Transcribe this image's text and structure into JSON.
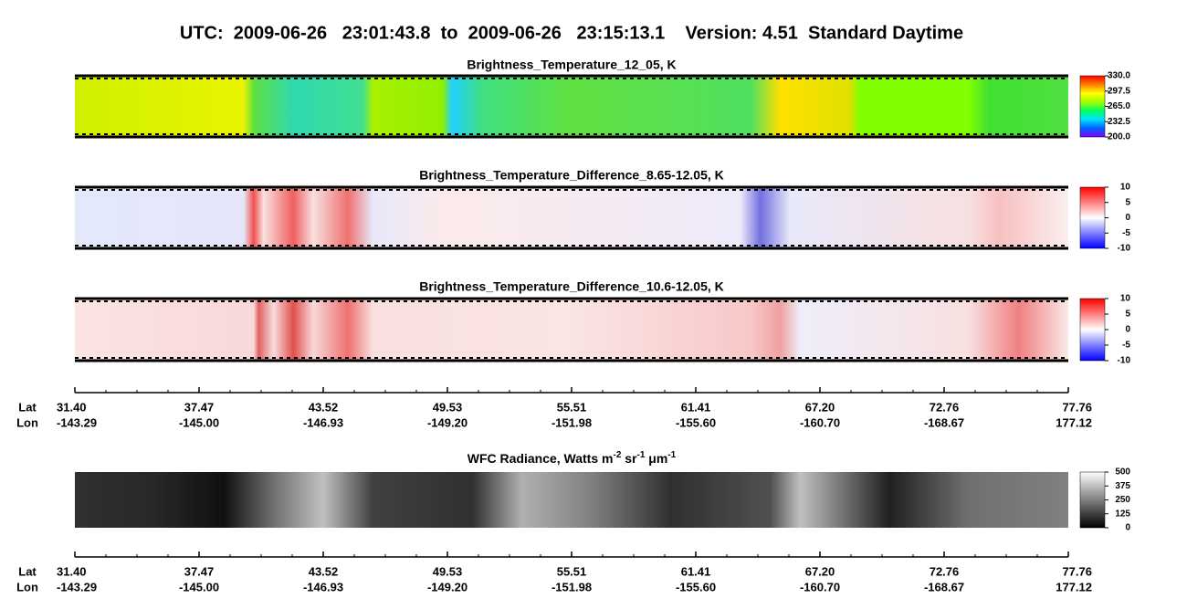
{
  "title": "UTC:  2009-06-26   23:01:43.8  to  2009-06-26   23:15:13.1    Version: 4.51  Standard Daytime",
  "chart_data": [
    {
      "type": "image",
      "title": "Brightness_Temperature_12_05, K",
      "ylim": [
        200,
        330
      ],
      "yticks": [
        {
          "value": 330,
          "label": "330.0"
        },
        {
          "value": 297.5,
          "label": "297.5"
        },
        {
          "value": 265,
          "label": "265.0"
        },
        {
          "value": 232.5,
          "label": "232.5"
        },
        {
          "value": 200,
          "label": "200.0"
        }
      ],
      "colormap": [
        "#8000ff",
        "#0060ff",
        "#00e0ff",
        "#00ff60",
        "#a0ff00",
        "#ffff00",
        "#ff8000",
        "#ff0000"
      ]
    },
    {
      "type": "image",
      "title": "Brightness_Temperature_Difference_8.65-12.05, K",
      "ylim": [
        -10,
        10
      ],
      "yticks": [
        10,
        5,
        0,
        -5,
        -10
      ],
      "colormap": [
        "#0000ff",
        "#ffffff",
        "#ff0000"
      ]
    },
    {
      "type": "image",
      "title": "Brightness_Temperature_Difference_10.6-12.05, K",
      "ylim": [
        -10,
        10
      ],
      "yticks": [
        10,
        5,
        0,
        -5,
        -10
      ],
      "colormap": [
        "#0000ff",
        "#ffffff",
        "#ff0000"
      ]
    },
    {
      "type": "image",
      "title": [
        "WFC Radiance, Watts m",
        "-2",
        " sr",
        "-1",
        " μm",
        "-1"
      ],
      "ylim": [
        0,
        500
      ],
      "yticks": [
        500,
        375,
        250,
        125,
        0
      ],
      "colormap": [
        "#000000",
        "#ffffff"
      ]
    }
  ],
  "axes": [
    {
      "lat_label": "Lat",
      "lon_label": "Lon",
      "lat": [
        "31.40",
        "37.47",
        "43.52",
        "49.53",
        "55.51",
        "61.41",
        "67.20",
        "72.76",
        "77.76"
      ],
      "lon": [
        "-143.29",
        "-145.00",
        "-146.93",
        "-149.20",
        "-151.98",
        "-155.60",
        "-160.70",
        "-168.67",
        "177.12"
      ]
    },
    {
      "lat_label": "Lat",
      "lon_label": "Lon",
      "lat": [
        "31.40",
        "37.47",
        "43.52",
        "49.53",
        "55.51",
        "61.41",
        "67.20",
        "72.76",
        "77.76"
      ],
      "lon": [
        "-143.29",
        "-145.00",
        "-146.93",
        "-149.20",
        "-151.98",
        "-155.60",
        "-160.70",
        "-168.67",
        "177.12"
      ]
    }
  ]
}
